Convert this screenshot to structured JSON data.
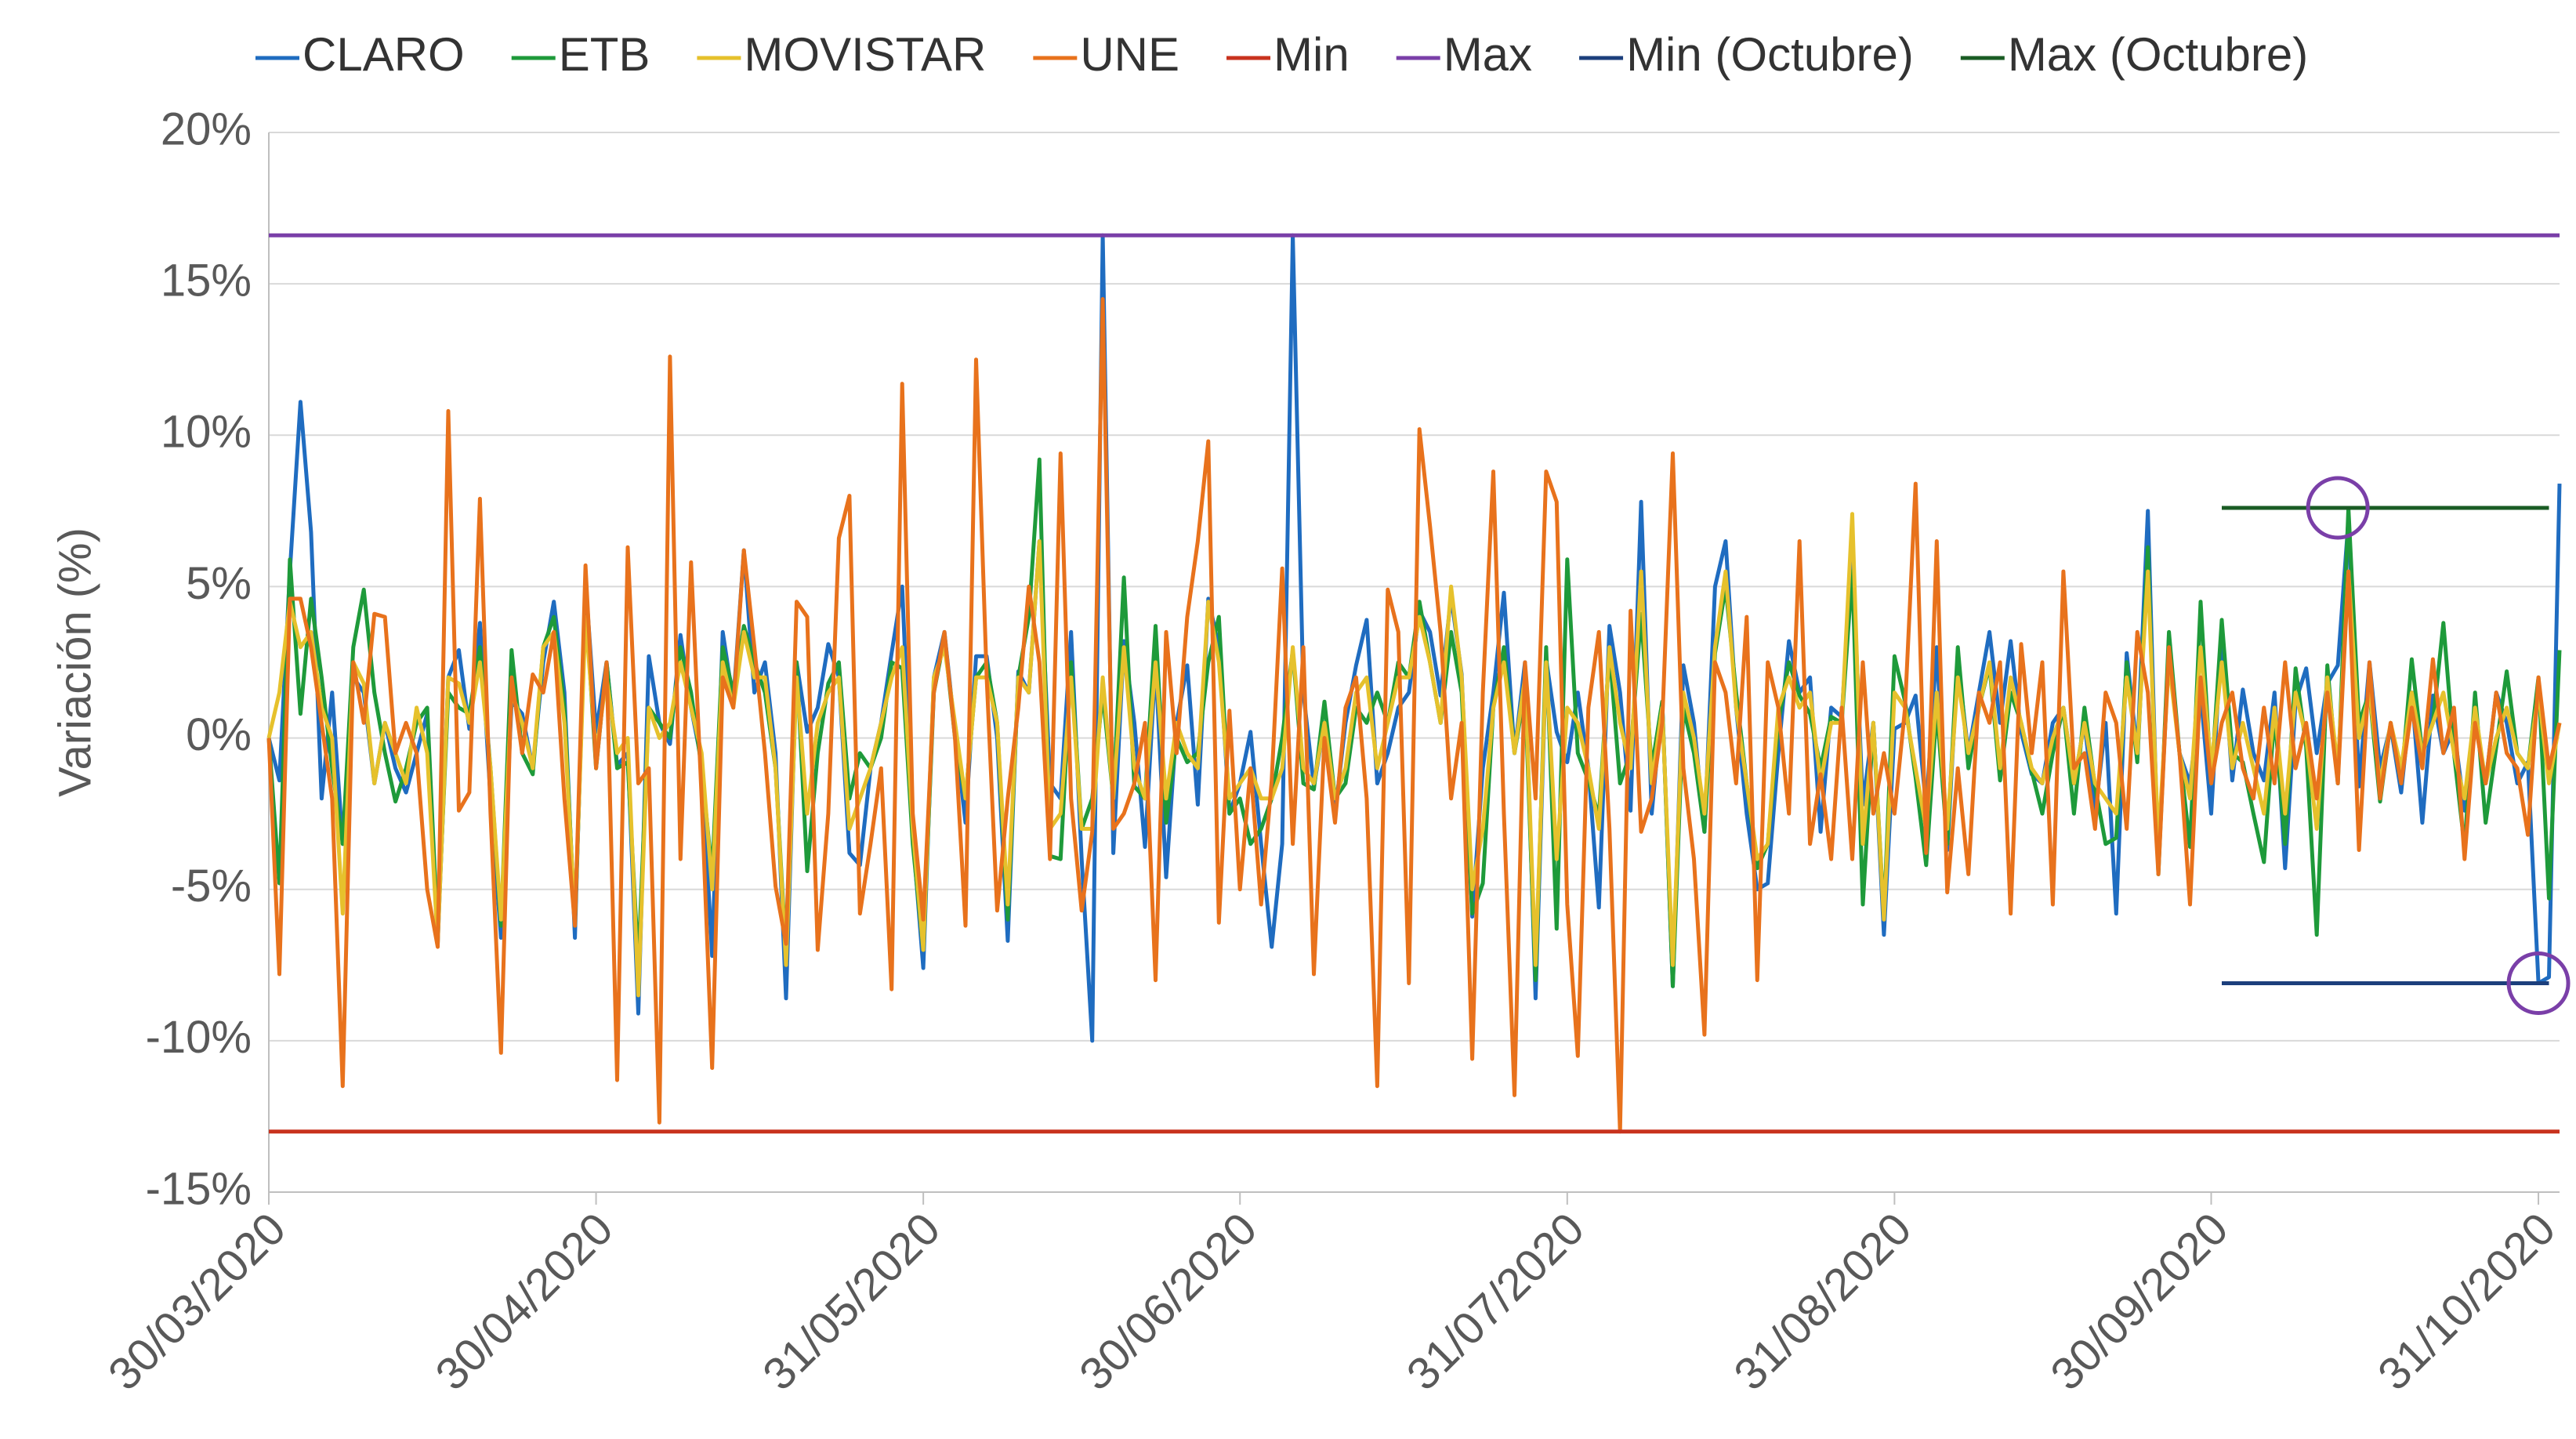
{
  "chart_data": {
    "type": "line",
    "y_label": "Variación (%)",
    "x": [
      "30/03/2020",
      "31/03/2020",
      "01/04/2020",
      "02/04/2020",
      "03/04/2020",
      "04/04/2020",
      "05/04/2020",
      "06/04/2020",
      "07/04/2020",
      "08/04/2020",
      "09/04/2020",
      "10/04/2020",
      "11/04/2020",
      "12/04/2020",
      "13/04/2020",
      "14/04/2020",
      "15/04/2020",
      "16/04/2020",
      "17/04/2020",
      "18/04/2020",
      "19/04/2020",
      "20/04/2020",
      "21/04/2020",
      "22/04/2020",
      "23/04/2020",
      "24/04/2020",
      "25/04/2020",
      "26/04/2020",
      "27/04/2020",
      "28/04/2020",
      "29/04/2020",
      "30/04/2020",
      "01/05/2020",
      "02/05/2020",
      "03/05/2020",
      "04/05/2020",
      "05/05/2020",
      "06/05/2020",
      "07/05/2020",
      "08/05/2020",
      "09/05/2020",
      "10/05/2020",
      "11/05/2020",
      "12/05/2020",
      "13/05/2020",
      "14/05/2020",
      "15/05/2020",
      "16/05/2020",
      "17/05/2020",
      "18/05/2020",
      "19/05/2020",
      "20/05/2020",
      "21/05/2020",
      "22/05/2020",
      "23/05/2020",
      "24/05/2020",
      "25/05/2020",
      "26/05/2020",
      "27/05/2020",
      "28/05/2020",
      "29/05/2020",
      "30/05/2020",
      "31/05/2020",
      "01/06/2020",
      "02/06/2020",
      "03/06/2020",
      "04/06/2020",
      "05/06/2020",
      "06/06/2020",
      "07/06/2020",
      "08/06/2020",
      "09/06/2020",
      "10/06/2020",
      "11/06/2020",
      "12/06/2020",
      "13/06/2020",
      "14/06/2020",
      "15/06/2020",
      "16/06/2020",
      "17/06/2020",
      "18/06/2020",
      "19/06/2020",
      "20/06/2020",
      "21/06/2020",
      "22/06/2020",
      "23/06/2020",
      "24/06/2020",
      "25/06/2020",
      "26/06/2020",
      "27/06/2020",
      "28/06/2020",
      "29/06/2020",
      "30/06/2020",
      "01/07/2020",
      "02/07/2020",
      "03/07/2020",
      "04/07/2020",
      "05/07/2020",
      "06/07/2020",
      "07/07/2020",
      "08/07/2020",
      "09/07/2020",
      "10/07/2020",
      "11/07/2020",
      "12/07/2020",
      "13/07/2020",
      "14/07/2020",
      "15/07/2020",
      "16/07/2020",
      "17/07/2020",
      "18/07/2020",
      "19/07/2020",
      "20/07/2020",
      "21/07/2020",
      "22/07/2020",
      "23/07/2020",
      "24/07/2020",
      "25/07/2020",
      "26/07/2020",
      "27/07/2020",
      "28/07/2020",
      "29/07/2020",
      "30/07/2020",
      "31/07/2020",
      "01/08/2020",
      "02/08/2020",
      "03/08/2020",
      "04/08/2020",
      "05/08/2020",
      "06/08/2020",
      "07/08/2020",
      "08/08/2020",
      "09/08/2020",
      "10/08/2020",
      "11/08/2020",
      "12/08/2020",
      "13/08/2020",
      "14/08/2020",
      "15/08/2020",
      "16/08/2020",
      "17/08/2020",
      "18/08/2020",
      "19/08/2020",
      "20/08/2020",
      "21/08/2020",
      "22/08/2020",
      "23/08/2020",
      "24/08/2020",
      "25/08/2020",
      "26/08/2020",
      "27/08/2020",
      "28/08/2020",
      "29/08/2020",
      "30/08/2020",
      "31/08/2020",
      "01/09/2020",
      "02/09/2020",
      "03/09/2020",
      "04/09/2020",
      "05/09/2020",
      "06/09/2020",
      "07/09/2020",
      "08/09/2020",
      "09/09/2020",
      "10/09/2020",
      "11/09/2020",
      "12/09/2020",
      "13/09/2020",
      "14/09/2020",
      "15/09/2020",
      "16/09/2020",
      "17/09/2020",
      "18/09/2020",
      "19/09/2020",
      "20/09/2020",
      "21/09/2020",
      "22/09/2020",
      "23/09/2020",
      "24/09/2020",
      "25/09/2020",
      "26/09/2020",
      "27/09/2020",
      "28/09/2020",
      "29/09/2020",
      "30/09/2020",
      "01/10/2020",
      "02/10/2020",
      "03/10/2020",
      "04/10/2020",
      "05/10/2020",
      "06/10/2020",
      "07/10/2020",
      "08/10/2020",
      "09/10/2020",
      "10/10/2020",
      "11/10/2020",
      "12/10/2020",
      "13/10/2020",
      "14/10/2020",
      "15/10/2020",
      "16/10/2020",
      "17/10/2020",
      "18/10/2020",
      "19/10/2020",
      "20/10/2020",
      "21/10/2020",
      "22/10/2020",
      "23/10/2020",
      "24/10/2020",
      "25/10/2020",
      "26/10/2020",
      "27/10/2020",
      "28/10/2020",
      "29/10/2020",
      "30/10/2020",
      "31/10/2020",
      "01/11/2020",
      "02/11/2020"
    ],
    "series": [
      {
        "name": "CLARO",
        "color": "#1f6cc0",
        "values": [
          0,
          -1.4,
          5.5,
          11.1,
          6.8,
          -2,
          1.5,
          -3.5,
          2,
          1.5,
          -1.5,
          0.5,
          -1,
          -1.8,
          -0.5,
          0.8,
          -6.8,
          2,
          2.9,
          0.3,
          3.8,
          -2,
          -6.6,
          1.2,
          0.8,
          -1,
          2.5,
          4.5,
          1.5,
          -6.6,
          5.2,
          0.2,
          2.5,
          -0.9,
          -0.5,
          -9.1,
          2.7,
          0.5,
          -0.2,
          3.4,
          1,
          -0.8,
          -7.2,
          3.5,
          1.2,
          6.2,
          1.5,
          2.5,
          -0.5,
          -8.6,
          2.5,
          0.2,
          1,
          3.1,
          2,
          -3.8,
          -4.2,
          -1,
          0.5,
          2.8,
          5,
          -3.2,
          -7.6,
          2,
          3.5,
          0.2,
          -2.8,
          2.7,
          2.7,
          0,
          -6.7,
          2.2,
          1.5,
          6.5,
          -1.5,
          -2,
          3.5,
          -4,
          -10,
          16.6,
          -3.8,
          3.2,
          0.5,
          -3.6,
          2.5,
          -4.6,
          0.5,
          2.4,
          -2.2,
          4.6,
          3,
          -2.5,
          -1.5,
          0.2,
          -3.5,
          -6.9,
          -3.5,
          16.6,
          1.5,
          -1.6,
          0.5,
          -2.5,
          0.5,
          2.4,
          3.9,
          -1.5,
          -0.5,
          1,
          1.5,
          4.2,
          3.5,
          1.4,
          4.7,
          2.1,
          -5.9,
          -1,
          1.5,
          4.8,
          -0.5,
          2.5,
          -8.6,
          2.6,
          0.2,
          -0.8,
          1.5,
          -1,
          -5.6,
          3.7,
          1.5,
          -2.4,
          7.8,
          -2.5,
          1.2,
          -8.2,
          2.4,
          0.5,
          -3.1,
          5,
          6.5,
          1,
          -2.5,
          -5,
          -4.8,
          -0.5,
          3.2,
          1.5,
          2,
          -3.1,
          1,
          0.7,
          6.2,
          -2.2,
          0.5,
          -6.5,
          0.3,
          0.5,
          1.4,
          -2.3,
          3,
          -3.7,
          2.5,
          -0.5,
          1.5,
          3.5,
          0.5,
          3.2,
          0.2,
          -1.2,
          -1.5,
          0.5,
          1,
          -1.5,
          0.5,
          -2.5,
          0.5,
          -5.8,
          2.8,
          -0.5,
          7.5,
          -4.3,
          3,
          -0.5,
          -1.5,
          1.5,
          -2.5,
          3.5,
          -1.4,
          1.6,
          -0.5,
          -1.4,
          1.5,
          -4.3,
          1.2,
          2.3,
          -0.5,
          1.8,
          2.4,
          7.2,
          -1.6,
          2.5,
          -1,
          0.4,
          -1.8,
          1.5,
          -2.8,
          1.4,
          -0.5,
          0.3,
          -2.4,
          0.8,
          -1.5,
          1.5,
          0.5,
          -1.5,
          -0.8,
          -8.1,
          -7.9,
          8.4
        ]
      },
      {
        "name": "ETB",
        "color": "#1e9a3a",
        "values": [
          0,
          -4.8,
          5.9,
          0.8,
          4.6,
          2,
          -1,
          -3.5,
          3,
          4.9,
          1.5,
          -0.5,
          -2.1,
          -1,
          0.5,
          1,
          -6.5,
          1.5,
          1,
          0.8,
          3,
          -1,
          -6.2,
          2.9,
          -0.5,
          -1.2,
          3,
          4,
          1,
          -6.2,
          4.5,
          -1,
          2.5,
          -1,
          -0.8,
          -7.5,
          1,
          0.5,
          0,
          3,
          1.5,
          -1,
          -4.5,
          3,
          1.5,
          3.7,
          2.5,
          1.5,
          -1,
          -7.2,
          2.5,
          -4.4,
          -0.5,
          1.8,
          2.5,
          -2,
          -0.5,
          -1,
          0,
          2.5,
          2.3,
          -3.5,
          -7,
          1.5,
          3.3,
          0,
          -2,
          2,
          2.5,
          0.5,
          -6,
          2,
          4,
          9.2,
          -3.9,
          -4,
          2.5,
          -3,
          -2,
          1.5,
          -2,
          5.3,
          -1.6,
          -2,
          3.7,
          -2.8,
          0,
          -0.8,
          -0.5,
          2.5,
          4,
          -2.5,
          -2,
          -3.5,
          -3,
          -2,
          0,
          2.9,
          -1.5,
          -1.7,
          1.2,
          -2,
          -1.5,
          1,
          0.5,
          1.5,
          0.5,
          2.5,
          2,
          4.5,
          2.5,
          0.5,
          3.5,
          1.5,
          -5.8,
          -4.8,
          1,
          3,
          -0.5,
          1.6,
          -8,
          3,
          -6.3,
          5.9,
          -0.5,
          -1.4,
          -2.6,
          2.9,
          -1.5,
          -0.5,
          4.1,
          -1,
          1.2,
          -8.2,
          1,
          -0.5,
          -3.1,
          2.8,
          5,
          1.5,
          -1.5,
          -4.3,
          -3.5,
          0.5,
          2.5,
          1.4,
          0.8,
          -1,
          0.7,
          0.5,
          5.5,
          -5.5,
          0.5,
          -5.9,
          2.7,
          1.2,
          -1.3,
          -4.2,
          1,
          -3.5,
          3,
          -1,
          1,
          2.4,
          -1.4,
          1.5,
          0.5,
          -1.1,
          -2.5,
          -0.5,
          1,
          -2.5,
          1,
          -1.6,
          -3.5,
          -3.3,
          2.5,
          -0.8,
          6.3,
          -4.5,
          3.5,
          -0.5,
          -3.6,
          4.5,
          -1.5,
          3.9,
          -0.5,
          -0.8,
          -2.5,
          -4.1,
          0.8,
          -3.5,
          2.3,
          -0.3,
          -6.5,
          2.4,
          -1.5,
          7.6,
          0.5,
          1.5,
          -2.1,
          0.5,
          -1.5,
          2.6,
          -0.5,
          0.5,
          3.8,
          -0.5,
          -3.6,
          1.5,
          -2.8,
          -0.3,
          2.2,
          -0.5,
          -1,
          2,
          -5.3,
          2.9
        ]
      },
      {
        "name": "MOVISTAR",
        "color": "#e6c12c",
        "values": [
          0,
          1.5,
          4.5,
          3,
          3.5,
          1,
          0,
          -5.8,
          2.5,
          1.8,
          -1.5,
          0.5,
          -0.5,
          -1.5,
          1,
          -0.5,
          -6.8,
          2,
          1.8,
          0.5,
          2.5,
          -1,
          -6,
          1.5,
          0.5,
          -1,
          3,
          3.5,
          0.5,
          -6,
          4,
          -0.5,
          2,
          -0.5,
          0,
          -8.5,
          1,
          0,
          0.5,
          2.5,
          1,
          -0.5,
          -5,
          2.5,
          1,
          3.5,
          2,
          2,
          -1,
          -7.5,
          2,
          -2.5,
          0.5,
          1.5,
          2,
          -3,
          -2,
          -1,
          0.5,
          2,
          3,
          -3,
          -7,
          2,
          3,
          0.5,
          -2,
          2,
          2,
          0.5,
          -5.5,
          2,
          1.5,
          6.5,
          -3,
          -2.5,
          2,
          -3,
          -3,
          2,
          -2,
          3,
          -1,
          -2,
          2.5,
          -2,
          0.5,
          -0.5,
          -1,
          4.5,
          2.5,
          -2,
          -1.5,
          -1,
          -2,
          -2,
          -1,
          3,
          -1,
          -1.5,
          0.5,
          -2,
          -1,
          1.5,
          2,
          -1,
          0.5,
          2,
          2,
          4,
          2.5,
          0.5,
          5,
          2,
          -5,
          -3,
          1,
          2.5,
          -0.5,
          2,
          -7.5,
          2.5,
          -4,
          1,
          0.5,
          -1,
          -3,
          3,
          0.5,
          -1,
          5.5,
          -1.5,
          1,
          -7.5,
          1.5,
          0,
          -2.5,
          3,
          5.5,
          1,
          -1.5,
          -4,
          -3.5,
          1,
          2,
          1,
          1.5,
          -1.5,
          0.5,
          0.5,
          7.4,
          -3.5,
          0.5,
          -6,
          1.5,
          1,
          -1,
          -3,
          1.5,
          -3,
          2,
          -0.5,
          1,
          2.5,
          -1,
          2,
          0.5,
          -1,
          -1.5,
          0,
          1,
          -1.5,
          0.5,
          -1.5,
          -2,
          -2.5,
          2,
          -0.5,
          5.5,
          -3.5,
          2.5,
          -0.5,
          -2,
          3,
          -1,
          2.5,
          -1,
          0.5,
          -1,
          -2.5,
          1,
          -2.5,
          1.5,
          0,
          -3,
          2,
          -1,
          5.5,
          0,
          1.5,
          -1.5,
          0.5,
          -1,
          1.5,
          -0.5,
          0.5,
          1.5,
          -0.5,
          -2,
          1,
          -1.5,
          0,
          1,
          -0.5,
          -1,
          1.5,
          -1.5,
          0.5
        ]
      },
      {
        "name": "UNE",
        "color": "#e8721c",
        "values": [
          0,
          -7.8,
          4.6,
          4.6,
          3,
          0.5,
          -2,
          -11.5,
          2.5,
          0.5,
          4.1,
          4,
          -0.5,
          0.5,
          -0.5,
          -5,
          -6.9,
          10.8,
          -2.4,
          -1.8,
          7.9,
          -2.5,
          -10.4,
          2,
          -0.5,
          2.1,
          1.5,
          3.5,
          -2,
          -6.2,
          5.7,
          -1,
          2.5,
          -11.3,
          6.3,
          -1.5,
          -1,
          -12.7,
          12.6,
          -4,
          5.8,
          -2,
          -10.9,
          2,
          1,
          6.2,
          3,
          -0.5,
          -4.9,
          -6.8,
          4.5,
          4,
          -7,
          -2.5,
          6.6,
          8,
          -5.8,
          -3.5,
          -1,
          -8.3,
          11.7,
          -2.5,
          -6,
          1.5,
          3.5,
          0,
          -6.2,
          12.5,
          2,
          -5.7,
          -2,
          1,
          5,
          2.5,
          -4,
          9.4,
          -2,
          -5.7,
          -3.1,
          14.5,
          -3,
          -2.5,
          -1.5,
          0.5,
          -8,
          3.5,
          -0.5,
          4,
          6.5,
          9.8,
          -6.1,
          0.9,
          -5,
          -1,
          -5.5,
          -1.4,
          5.6,
          -3.5,
          3,
          -7.8,
          0,
          -2.8,
          1,
          2,
          -2,
          -11.5,
          4.9,
          3.5,
          -8.1,
          10.2,
          7,
          3.5,
          -2,
          0.5,
          -10.6,
          1.5,
          8.8,
          -2.5,
          -11.8,
          2.5,
          -2,
          8.8,
          7.8,
          -5.5,
          -10.5,
          1,
          3.5,
          -3,
          -13,
          4.2,
          -3.1,
          -2,
          0.5,
          9.4,
          -1,
          -4,
          -9.8,
          2.5,
          1.5,
          -1.5,
          4,
          -8,
          2.5,
          1,
          -2.5,
          6.5,
          -3.5,
          -1.2,
          -4,
          1,
          -4,
          2.5,
          -2.5,
          -0.5,
          -2.5,
          1,
          8.4,
          -3.8,
          6.5,
          -5.1,
          -1,
          -4.5,
          1.5,
          0.5,
          2.5,
          -5.8,
          3.1,
          -0.5,
          2.5,
          -5.5,
          5.5,
          -1,
          -0.5,
          -3,
          1.5,
          0.5,
          -3,
          3.5,
          1.5,
          -4.5,
          3,
          -0.5,
          -5.5,
          2,
          -1.5,
          0.5,
          1.5,
          -1,
          -2,
          1,
          -1.5,
          2.5,
          -1,
          0.5,
          -2,
          1.5,
          -1.5,
          5.5,
          -3.7,
          2.5,
          -2,
          0.5,
          -1.5,
          1,
          -1,
          2.6,
          -0.5,
          1,
          -4,
          0.5,
          -1.5,
          1.5,
          -0.5,
          -1,
          -3.2,
          2,
          -1,
          0.5
        ]
      },
      {
        "name": "Min",
        "color": "#c8321e",
        "x": [
          "30/03/2020",
          "02/11/2020"
        ],
        "values": [
          -13,
          -13
        ]
      },
      {
        "name": "Max",
        "color": "#7a3fa8",
        "x": [
          "30/03/2020",
          "02/11/2020"
        ],
        "values": [
          16.6,
          16.6
        ]
      },
      {
        "name": "Min (Octubre)",
        "color": "#1c3f7c",
        "x": [
          "01/10/2020",
          "01/11/2020"
        ],
        "values": [
          -8.1,
          -8.1
        ]
      },
      {
        "name": "Max (Octubre)",
        "color": "#1a5c24",
        "x": [
          "01/10/2020",
          "01/11/2020"
        ],
        "values": [
          7.6,
          7.6
        ]
      }
    ],
    "highlights": [
      {
        "x": "12/10/2020",
        "y": 7.6
      },
      {
        "x": "31/10/2020",
        "y": -8.1
      }
    ],
    "highlight_color": "#7a3fa8",
    "xlim": [
      "30/03/2020",
      "02/11/2020"
    ],
    "xticks": [
      "30/03/2020",
      "30/04/2020",
      "31/05/2020",
      "30/06/2020",
      "31/07/2020",
      "31/08/2020",
      "30/09/2020",
      "31/10/2020"
    ],
    "ylim": [
      -15,
      20
    ],
    "yticks": [
      {
        "value": -15,
        "label": "-15%"
      },
      {
        "value": -10,
        "label": "-10%"
      },
      {
        "value": -5,
        "label": "-5%"
      },
      {
        "value": 0,
        "label": "0%"
      },
      {
        "value": 5,
        "label": "5%"
      },
      {
        "value": 10,
        "label": "10%"
      },
      {
        "value": 15,
        "label": "15%"
      },
      {
        "value": 20,
        "label": "20%"
      }
    ],
    "grid": true,
    "legend": "top"
  }
}
